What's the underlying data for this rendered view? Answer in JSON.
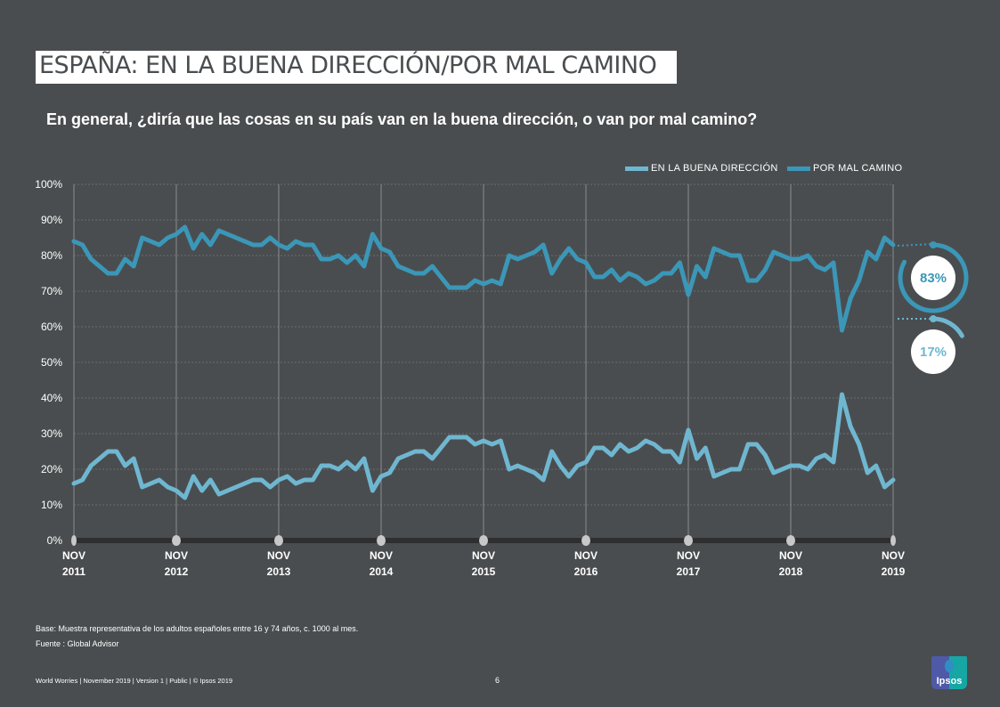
{
  "slide": {
    "title": "ESPAÑA: EN LA BUENA DIRECCIÓN/POR MAL CAMINO",
    "question": "En general, ¿diría que las cosas en su país van en la buena dirección, o van por mal camino?",
    "base_note": "Base: Muestra representativa de los adultos españoles entre 16 y 74 años, c. 1000 al mes.",
    "source_note": "Fuente : Global Advisor",
    "footer": "World Worries | November 2019 | Version 1  |  Public | © Ipsos 2019",
    "page_number": "6",
    "logo_text": "Ipsos"
  },
  "callouts": {
    "wrong_track": "83%",
    "right_direction": "17%"
  },
  "colors": {
    "background": "#4a4d4f",
    "right_direction": "#6fb7d1",
    "wrong_track": "#3b97b8",
    "axis_bar": "#2d2f30",
    "gridline": "#6a6d6f"
  },
  "chart_data": {
    "type": "line",
    "title": "ESPAÑA: EN LA BUENA DIRECCIÓN/POR MAL CAMINO",
    "xlabel": "",
    "ylabel": "",
    "ylim": [
      0,
      100
    ],
    "yticks": [
      "0%",
      "10%",
      "20%",
      "30%",
      "40%",
      "50%",
      "60%",
      "70%",
      "80%",
      "90%",
      "100%"
    ],
    "x_tick_labels": [
      {
        "month": "NOV",
        "year": "2011"
      },
      {
        "month": "NOV",
        "year": "2012"
      },
      {
        "month": "NOV",
        "year": "2013"
      },
      {
        "month": "NOV",
        "year": "2014"
      },
      {
        "month": "NOV",
        "year": "2015"
      },
      {
        "month": "NOV",
        "year": "2016"
      },
      {
        "month": "NOV",
        "year": "2017"
      },
      {
        "month": "NOV",
        "year": "2018"
      },
      {
        "month": "NOV",
        "year": "2019"
      }
    ],
    "x_start": "Nov 2011",
    "x_end": "Nov 2019",
    "frequency": "monthly",
    "grid": true,
    "legend_position": "top-right",
    "series": [
      {
        "name": "EN LA BUENA DIRECCIÓN",
        "values": [
          16,
          17,
          21,
          23,
          25,
          25,
          21,
          23,
          15,
          16,
          17,
          15,
          14,
          12,
          18,
          14,
          17,
          13,
          14,
          15,
          16,
          17,
          17,
          15,
          17,
          18,
          16,
          17,
          17,
          21,
          21,
          20,
          22,
          20,
          23,
          14,
          18,
          19,
          23,
          24,
          25,
          25,
          23,
          26,
          29,
          29,
          29,
          27,
          28,
          27,
          28,
          20,
          21,
          20,
          19,
          17,
          25,
          21,
          18,
          21,
          22,
          26,
          26,
          24,
          27,
          25,
          26,
          28,
          27,
          25,
          25,
          22,
          31,
          23,
          26,
          18,
          19,
          20,
          20,
          27,
          27,
          24,
          19,
          20,
          21,
          21,
          20,
          23,
          24,
          22,
          41,
          32,
          27,
          19,
          21,
          15,
          17
        ]
      },
      {
        "name": "POR MAL CAMINO",
        "values": [
          84,
          83,
          79,
          77,
          75,
          75,
          79,
          77,
          85,
          84,
          83,
          85,
          86,
          88,
          82,
          86,
          83,
          87,
          86,
          85,
          84,
          83,
          83,
          85,
          83,
          82,
          84,
          83,
          83,
          79,
          79,
          80,
          78,
          80,
          77,
          86,
          82,
          81,
          77,
          76,
          75,
          75,
          77,
          74,
          71,
          71,
          71,
          73,
          72,
          73,
          72,
          80,
          79,
          80,
          81,
          83,
          75,
          79,
          82,
          79,
          78,
          74,
          74,
          76,
          73,
          75,
          74,
          72,
          73,
          75,
          75,
          78,
          69,
          77,
          74,
          82,
          81,
          80,
          80,
          73,
          73,
          76,
          81,
          80,
          79,
          79,
          80,
          77,
          76,
          78,
          59,
          68,
          73,
          81,
          79,
          85,
          83
        ]
      }
    ]
  }
}
